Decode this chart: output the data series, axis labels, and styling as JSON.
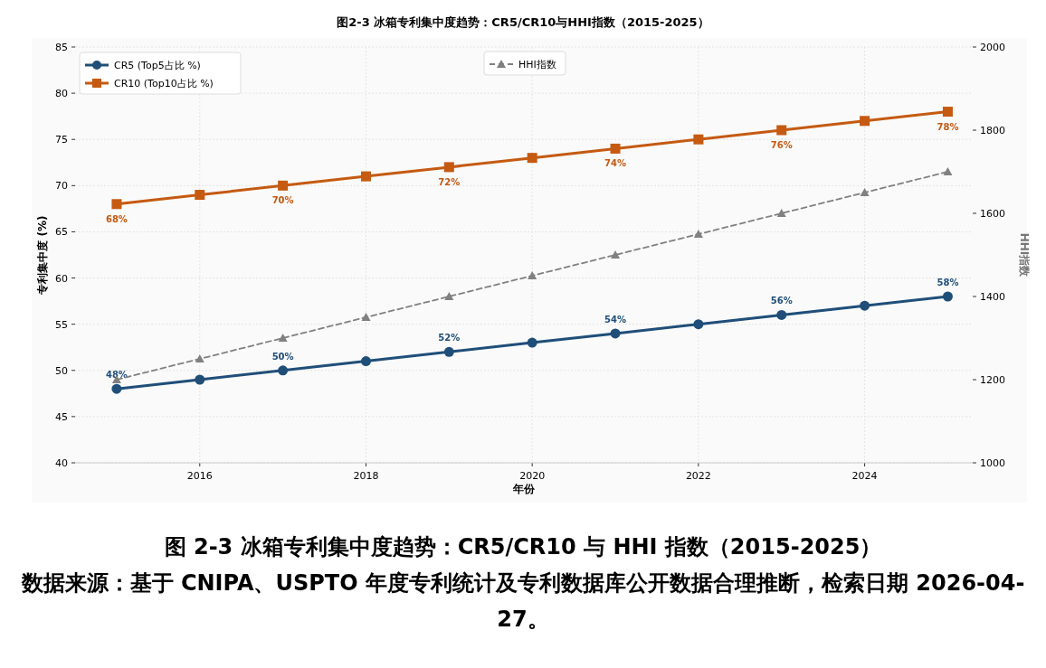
{
  "chart_data": {
    "type": "line",
    "title": "图2-3  冰箱专利集中度趋势：CR5/CR10与HHI指数（2015-2025）",
    "xlabel": "年份",
    "ylabel": "专利集中度 (%)",
    "y2label": "HHI指数",
    "x": [
      2015,
      2016,
      2017,
      2018,
      2019,
      2020,
      2021,
      2022,
      2023,
      2024,
      2025
    ],
    "xlim": [
      2014.5,
      2025.3
    ],
    "xticks": [
      2016,
      2018,
      2020,
      2022,
      2024
    ],
    "ylim": [
      40,
      85
    ],
    "yticks": [
      40,
      45,
      50,
      55,
      60,
      65,
      70,
      75,
      80,
      85
    ],
    "y2lim": [
      1000,
      2000
    ],
    "y2ticks": [
      1000,
      1200,
      1400,
      1600,
      1800,
      2000
    ],
    "grid": true,
    "legend": "top left",
    "line_style": "solid",
    "series": [
      {
        "name": "CR5 (Top5占比 %)",
        "color": "#1f4e79",
        "marker": "circle",
        "values": [
          48,
          49,
          50,
          51,
          52,
          53,
          54,
          55,
          56,
          57,
          58
        ],
        "value_labels": [
          "48%",
          null,
          "50%",
          null,
          "52%",
          null,
          "54%",
          null,
          "56%",
          null,
          "58%"
        ]
      },
      {
        "name": "CR10 (Top10占比 %)",
        "color": "#c55a11",
        "marker": "square",
        "values": [
          68,
          69,
          70,
          71,
          72,
          73,
          74,
          75,
          76,
          77,
          78
        ],
        "value_labels": [
          "68%",
          null,
          "70%",
          null,
          "72%",
          null,
          "74%",
          null,
          "76%",
          null,
          "78%"
        ]
      },
      {
        "name": "HHI指数",
        "color": "#808080",
        "marker": "triangle",
        "line_style": "dashed",
        "axis": "y2",
        "values": [
          1200,
          1250,
          1300,
          1350,
          1400,
          1450,
          1500,
          1550,
          1600,
          1650,
          1700
        ]
      }
    ],
    "annotations": [
      "图 2-3  冰箱专利集中度趋势：CR5/CR10 与 HHI 指数（2015-2025）",
      "数据来源：基于 CNIPA、USPTO 年度专利统计及专利数据库公开数据合理推断，检索日期 2026-04-27。"
    ]
  }
}
